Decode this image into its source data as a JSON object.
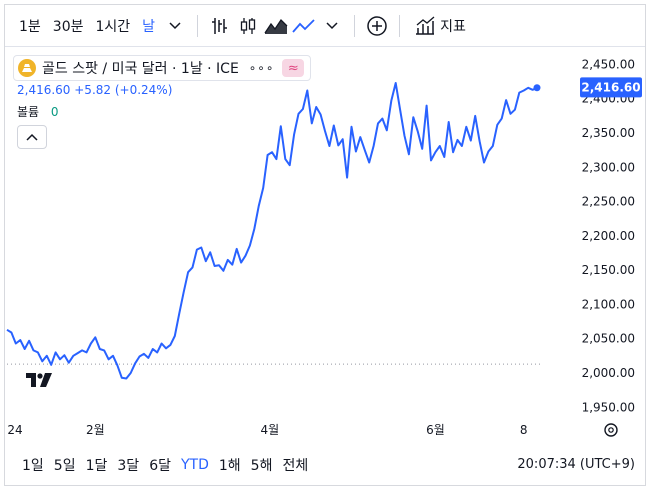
{
  "toolbar": {
    "intervals": [
      "1분",
      "30분",
      "1시간",
      "날"
    ],
    "active_interval": "날",
    "indicators_label": "지표"
  },
  "legend": {
    "symbol": "골드 스팟 / 미국 달러 · 1날 · ICE",
    "more": "∘∘∘",
    "pill": "≈",
    "price_line": "2,416.60 +5.82 (+0.24%)",
    "volume_label": "볼륨",
    "volume_value": "0"
  },
  "chart_data": {
    "type": "line",
    "series": [
      {
        "color": "#2962ff",
        "x": [
          0,
          2,
          4,
          6,
          8,
          10,
          12,
          14,
          16,
          18,
          20,
          22,
          24,
          26,
          28,
          30,
          32,
          34,
          36,
          38,
          40,
          42,
          44,
          46,
          48,
          50,
          52,
          54,
          56,
          58,
          60,
          62,
          64,
          66,
          68,
          70,
          72,
          74,
          76,
          78,
          80,
          82,
          84,
          86,
          88,
          90,
          92,
          94,
          96,
          98,
          100,
          102,
          104,
          106,
          108,
          110,
          112,
          114,
          116,
          118,
          120,
          122,
          124,
          126,
          128,
          130,
          132,
          134,
          136,
          138,
          140,
          142,
          144,
          146,
          148,
          150,
          152,
          154,
          156,
          158,
          160,
          162,
          164,
          166,
          168,
          170,
          172,
          174,
          176,
          178,
          180,
          182,
          184,
          186,
          188,
          190,
          192,
          194,
          196,
          198,
          200,
          202,
          204,
          206,
          208,
          210,
          212,
          214,
          216,
          218,
          220,
          222,
          224,
          226,
          228,
          230,
          232,
          234,
          236,
          238,
          240
        ],
        "y": [
          2063,
          2059,
          2043,
          2048,
          2035,
          2047,
          2033,
          2030,
          2017,
          2025,
          2012,
          2030,
          2020,
          2026,
          2015,
          2025,
          2029,
          2033,
          2030,
          2043,
          2052,
          2035,
          2033,
          2020,
          2025,
          2011,
          1993,
          1992,
          2000,
          2014,
          2024,
          2028,
          2022,
          2035,
          2030,
          2043,
          2036,
          2041,
          2054,
          2087,
          2118,
          2147,
          2154,
          2180,
          2183,
          2163,
          2176,
          2156,
          2157,
          2149,
          2165,
          2158,
          2181,
          2161,
          2171,
          2186,
          2210,
          2244,
          2270,
          2318,
          2322,
          2312,
          2360,
          2312,
          2303,
          2348,
          2378,
          2385,
          2412,
          2364,
          2388,
          2377,
          2353,
          2331,
          2361,
          2332,
          2341,
          2285,
          2359,
          2323,
          2344,
          2325,
          2307,
          2331,
          2364,
          2371,
          2354,
          2397,
          2423,
          2384,
          2346,
          2319,
          2373,
          2352,
          2327,
          2390,
          2310,
          2322,
          2331,
          2315,
          2366,
          2322,
          2340,
          2331,
          2359,
          2339,
          2375,
          2338,
          2307,
          2323,
          2331,
          2362,
          2371,
          2398,
          2378,
          2384,
          2409,
          2412,
          2416,
          2413,
          2416
        ],
        "last": 2416.6
      }
    ],
    "y_ticks": [
      "2,450.00",
      "2,400.00",
      "2,350.00",
      "2,300.00",
      "2,250.00",
      "2,200.00",
      "2,150.00",
      "2,100.00",
      "2,050.00",
      "2,000.00",
      "1,950.00"
    ],
    "x_ticks": [
      {
        "label": "24",
        "x": 0
      },
      {
        "label": "2월",
        "x": 40
      },
      {
        "label": "4월",
        "x": 119
      },
      {
        "label": "6월",
        "x": 194
      },
      {
        "label": "8",
        "x": 234
      }
    ],
    "ylim": [
      1946,
      2474
    ],
    "reference_line": 2013,
    "price_label": "2,416.60"
  },
  "bottombar": {
    "ranges": [
      "1일",
      "5일",
      "1달",
      "3달",
      "6달",
      "YTD",
      "1해",
      "5해",
      "전체"
    ],
    "active_range": "YTD",
    "clock": "20:07:34 (UTC+9)"
  }
}
